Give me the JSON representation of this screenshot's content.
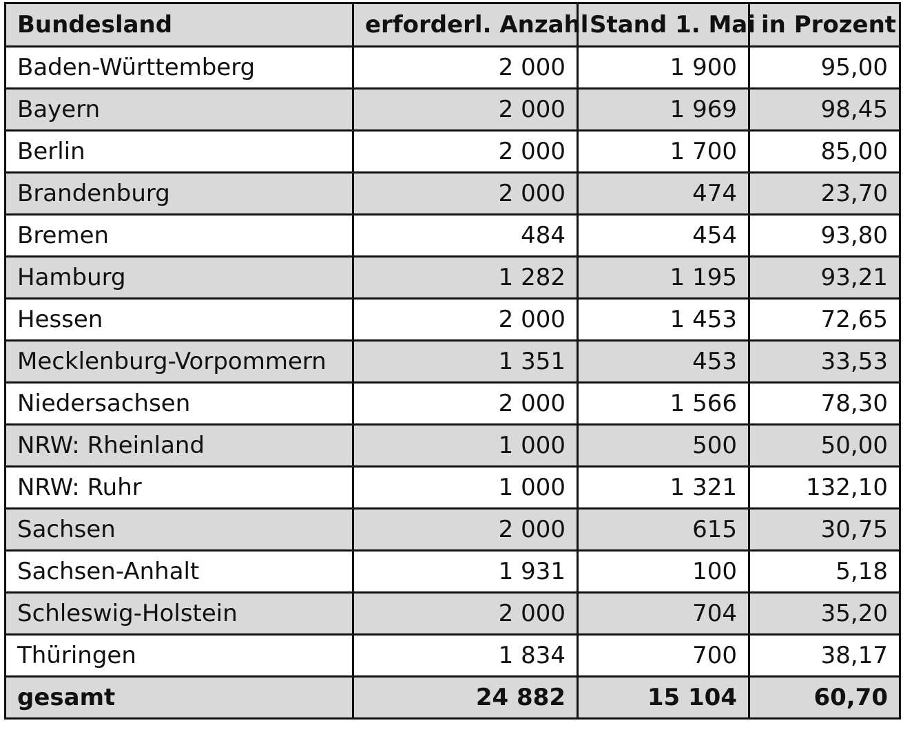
{
  "table": {
    "headers": [
      "Bundesland",
      "erforderl. Anzahl",
      "Stand 1. Mai",
      "in Prozent"
    ],
    "rows": [
      [
        "Baden-Württemberg",
        "2 000",
        "1 900",
        "95,00"
      ],
      [
        "Bayern",
        "2 000",
        "1 969",
        "98,45"
      ],
      [
        "Berlin",
        "2 000",
        "1 700",
        "85,00"
      ],
      [
        "Brandenburg",
        "2 000",
        "474",
        "23,70"
      ],
      [
        "Bremen",
        "484",
        "454",
        "93,80"
      ],
      [
        "Hamburg",
        "1 282",
        "1 195",
        "93,21"
      ],
      [
        "Hessen",
        "2 000",
        "1 453",
        "72,65"
      ],
      [
        "Mecklenburg-Vorpommern",
        "1 351",
        "453",
        "33,53"
      ],
      [
        "Niedersachsen",
        "2 000",
        "1 566",
        "78,30"
      ],
      [
        "NRW: Rheinland",
        "1 000",
        "500",
        "50,00"
      ],
      [
        "NRW: Ruhr",
        "1 000",
        "1 321",
        "132,10"
      ],
      [
        "Sachsen",
        "2 000",
        "615",
        "30,75"
      ],
      [
        "Sachsen-Anhalt",
        "1 931",
        "100",
        "5,18"
      ],
      [
        "Schleswig-Holstein",
        "2 000",
        "704",
        "35,20"
      ],
      [
        "Thüringen",
        "1 834",
        "700",
        "38,17"
      ]
    ],
    "total": [
      "gesamt",
      "24 882",
      "15 104",
      "60,70"
    ]
  },
  "colors": {
    "shade": "#d9d9d9",
    "border": "#111111",
    "text": "#111111"
  }
}
